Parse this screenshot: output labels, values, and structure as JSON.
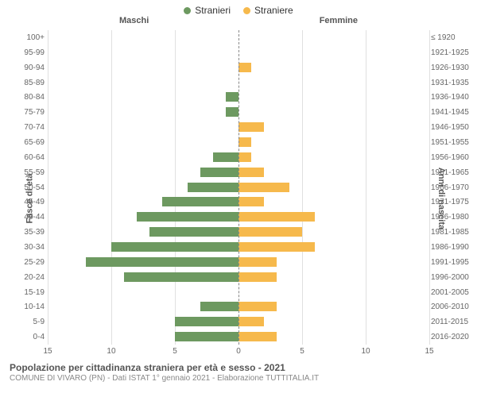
{
  "chart": {
    "type": "population-pyramid",
    "legend": [
      {
        "label": "Stranieri",
        "color": "#6d9960"
      },
      {
        "label": "Straniere",
        "color": "#f6b94c"
      }
    ],
    "header_left": "Maschi",
    "header_right": "Femmine",
    "y_title_left": "Fasce di età",
    "y_title_right": "Anni di nascita",
    "x_max": 15,
    "x_ticks": [
      15,
      10,
      5,
      0,
      5,
      10,
      15
    ],
    "male_color": "#6d9960",
    "female_color": "#f6b94c",
    "grid_color": "#e0e0e0",
    "background_color": "#ffffff",
    "label_fontsize": 10,
    "title_fontsize": 12,
    "rows": [
      {
        "age": "100+",
        "birth": "≤ 1920",
        "m": 0,
        "f": 0
      },
      {
        "age": "95-99",
        "birth": "1921-1925",
        "m": 0,
        "f": 0
      },
      {
        "age": "90-94",
        "birth": "1926-1930",
        "m": 0,
        "f": 1
      },
      {
        "age": "85-89",
        "birth": "1931-1935",
        "m": 0,
        "f": 0
      },
      {
        "age": "80-84",
        "birth": "1936-1940",
        "m": 1,
        "f": 0
      },
      {
        "age": "75-79",
        "birth": "1941-1945",
        "m": 1,
        "f": 0
      },
      {
        "age": "70-74",
        "birth": "1946-1950",
        "m": 0,
        "f": 2
      },
      {
        "age": "65-69",
        "birth": "1951-1955",
        "m": 0,
        "f": 1
      },
      {
        "age": "60-64",
        "birth": "1956-1960",
        "m": 2,
        "f": 1
      },
      {
        "age": "55-59",
        "birth": "1961-1965",
        "m": 3,
        "f": 2
      },
      {
        "age": "50-54",
        "birth": "1966-1970",
        "m": 4,
        "f": 4
      },
      {
        "age": "45-49",
        "birth": "1971-1975",
        "m": 6,
        "f": 2
      },
      {
        "age": "40-44",
        "birth": "1976-1980",
        "m": 8,
        "f": 6
      },
      {
        "age": "35-39",
        "birth": "1981-1985",
        "m": 7,
        "f": 5
      },
      {
        "age": "30-34",
        "birth": "1986-1990",
        "m": 10,
        "f": 6
      },
      {
        "age": "25-29",
        "birth": "1991-1995",
        "m": 12,
        "f": 3
      },
      {
        "age": "20-24",
        "birth": "1996-2000",
        "m": 9,
        "f": 3
      },
      {
        "age": "15-19",
        "birth": "2001-2005",
        "m": 0,
        "f": 0
      },
      {
        "age": "10-14",
        "birth": "2006-2010",
        "m": 3,
        "f": 3
      },
      {
        "age": "5-9",
        "birth": "2011-2015",
        "m": 5,
        "f": 2
      },
      {
        "age": "0-4",
        "birth": "2016-2020",
        "m": 5,
        "f": 3
      }
    ],
    "footer_title": "Popolazione per cittadinanza straniera per età e sesso - 2021",
    "footer_sub": "COMUNE DI VIVARO (PN) - Dati ISTAT 1° gennaio 2021 - Elaborazione TUTTITALIA.IT"
  }
}
